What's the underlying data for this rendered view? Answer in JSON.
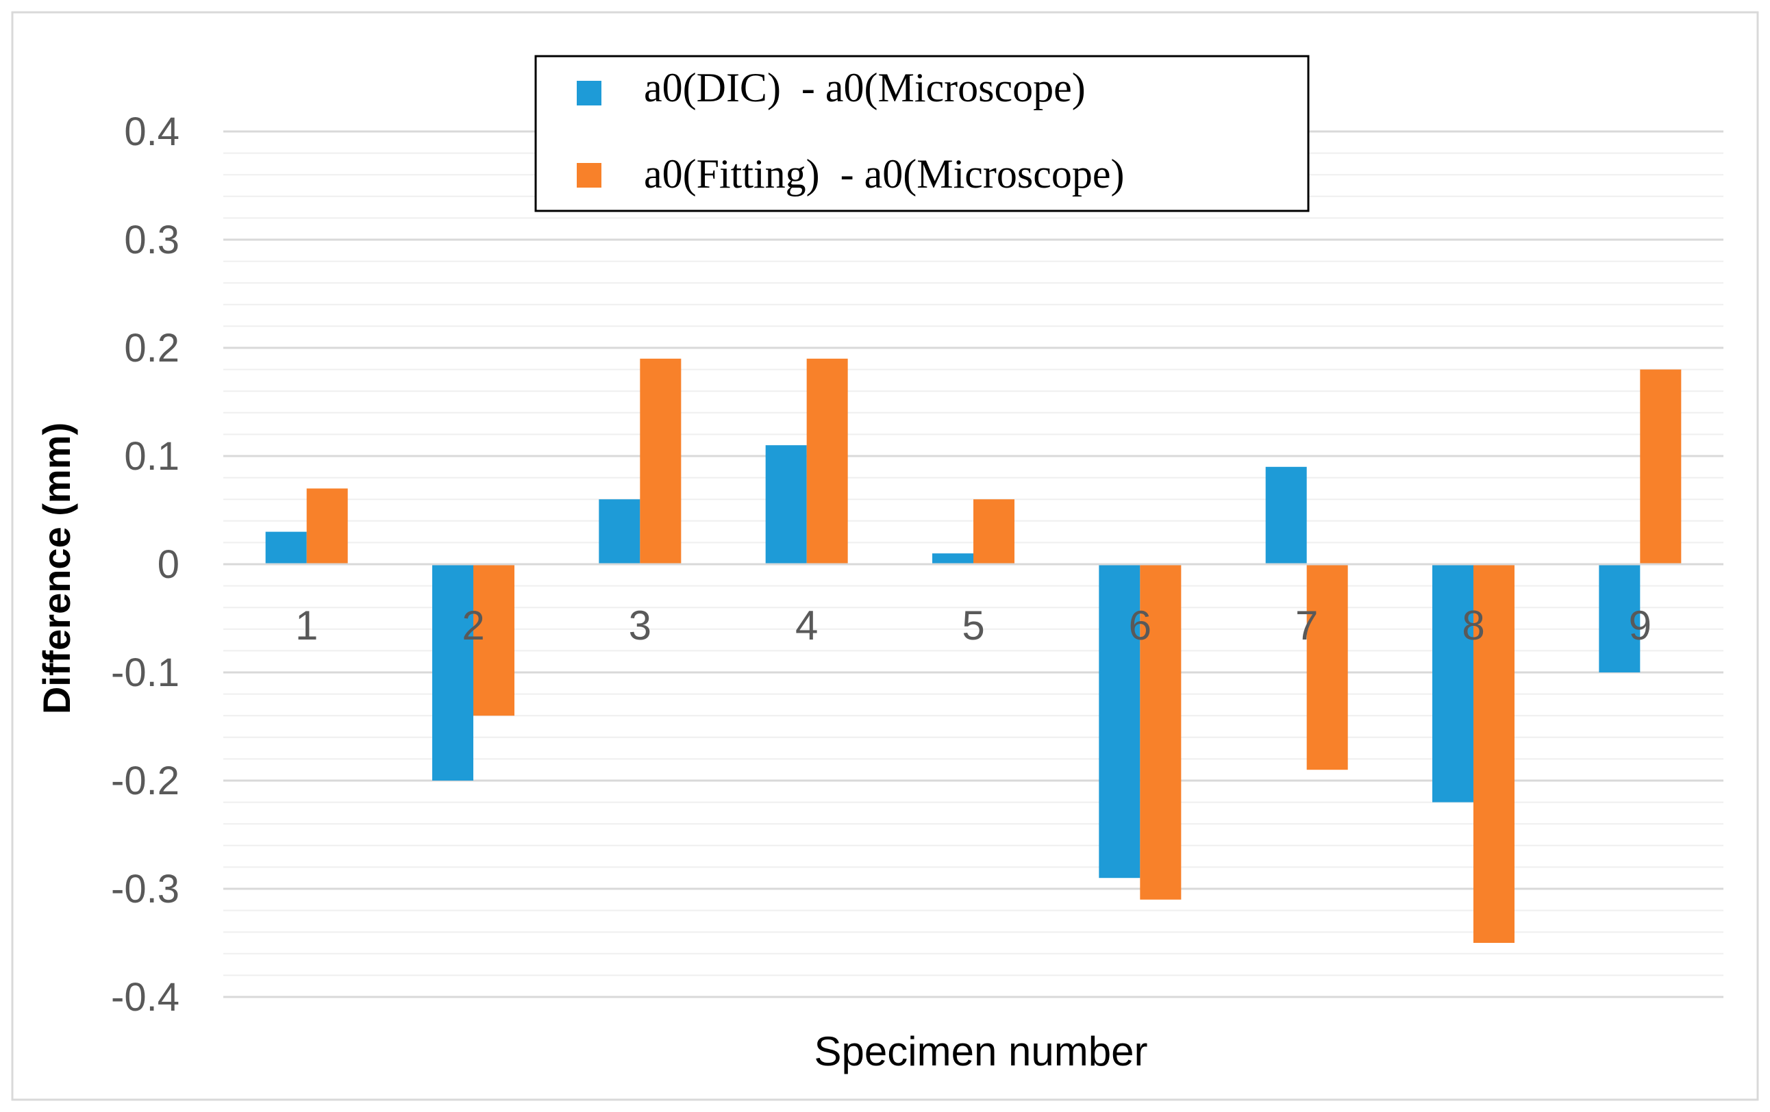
{
  "chart_data": {
    "type": "bar",
    "title": "",
    "xlabel": "Specimen number",
    "ylabel": "Difference (mm)",
    "ylim": [
      -0.4,
      0.4
    ],
    "major_tick_step": 0.1,
    "minor_tick_step": 0.02,
    "y_tick_labels": [
      "0.4",
      "0.3",
      "0.2",
      "0.1",
      "0",
      "-0.1",
      "-0.2",
      "-0.3",
      "-0.4"
    ],
    "y_tick_values": [
      0.4,
      0.3,
      0.2,
      0.1,
      0,
      -0.1,
      -0.2,
      -0.3,
      -0.4
    ],
    "categories": [
      "1",
      "2",
      "3",
      "4",
      "5",
      "6",
      "7",
      "8",
      "9"
    ],
    "category_label_position": "just below zero line",
    "grid": true,
    "legend_position": "top-center",
    "series": [
      {
        "name": "a0(DIC)  - a0(Microscope)",
        "color": "#1E9BD7",
        "values": [
          0.03,
          -0.2,
          0.06,
          0.11,
          0.01,
          -0.29,
          0.09,
          -0.22,
          -0.1
        ]
      },
      {
        "name": "a0(Fitting)  - a0(Microscope)",
        "color": "#F8812A",
        "values": [
          0.07,
          -0.14,
          0.19,
          0.19,
          0.06,
          -0.31,
          -0.19,
          -0.35,
          0.18
        ]
      }
    ]
  }
}
